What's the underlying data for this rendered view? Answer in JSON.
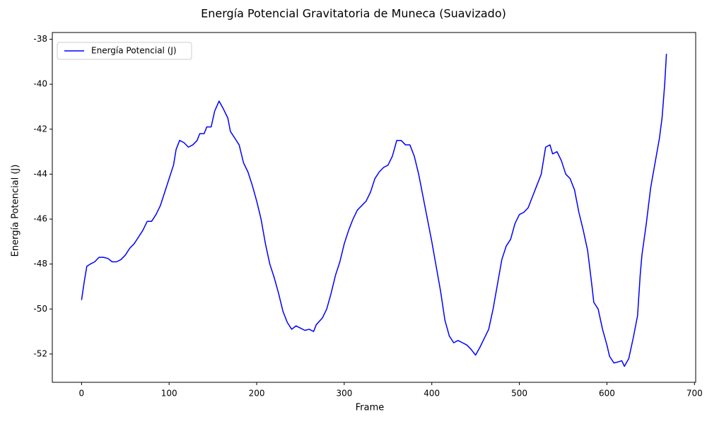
{
  "chart_data": {
    "type": "line",
    "title": "Energía Potencial Gravitatoria de Muneca (Suavizado)",
    "x_label": "Frame",
    "y_label": "Energía Potencial (J)",
    "x": [
      0,
      3,
      6,
      10,
      15,
      20,
      25,
      30,
      35,
      40,
      45,
      50,
      55,
      60,
      65,
      70,
      75,
      80,
      85,
      90,
      95,
      100,
      105,
      108,
      112,
      117,
      122,
      127,
      132,
      135,
      140,
      143,
      148,
      152,
      157,
      162,
      167,
      170,
      175,
      180,
      185,
      190,
      195,
      200,
      205,
      210,
      215,
      220,
      225,
      230,
      235,
      240,
      245,
      250,
      255,
      260,
      265,
      268,
      275,
      280,
      285,
      290,
      295,
      300,
      305,
      310,
      315,
      320,
      325,
      330,
      335,
      340,
      345,
      350,
      355,
      360,
      365,
      370,
      375,
      380,
      385,
      390,
      395,
      400,
      405,
      410,
      415,
      420,
      425,
      430,
      435,
      440,
      445,
      450,
      455,
      460,
      465,
      470,
      475,
      480,
      485,
      490,
      495,
      500,
      505,
      510,
      515,
      520,
      525,
      530,
      535,
      538,
      543,
      548,
      553,
      558,
      563,
      568,
      573,
      578,
      583,
      585,
      590,
      595,
      600,
      603,
      608,
      613,
      617,
      620,
      625,
      630,
      635,
      638,
      640,
      645,
      650,
      655,
      660,
      663,
      666,
      668
    ],
    "series": [
      {
        "name": "Energía Potencial (J)",
        "color": "#0000ff",
        "values": [
          -49.6,
          -48.8,
          -48.1,
          -48.0,
          -47.9,
          -47.7,
          -47.7,
          -47.75,
          -47.9,
          -47.9,
          -47.8,
          -47.6,
          -47.3,
          -47.1,
          -46.8,
          -46.5,
          -46.1,
          -46.1,
          -45.8,
          -45.4,
          -44.8,
          -44.2,
          -43.6,
          -42.9,
          -42.5,
          -42.6,
          -42.8,
          -42.7,
          -42.5,
          -42.2,
          -42.2,
          -41.9,
          -41.9,
          -41.2,
          -40.75,
          -41.1,
          -41.5,
          -42.1,
          -42.4,
          -42.7,
          -43.5,
          -43.9,
          -44.5,
          -45.2,
          -46.0,
          -47.1,
          -48.0,
          -48.6,
          -49.3,
          -50.1,
          -50.6,
          -50.9,
          -50.75,
          -50.85,
          -50.95,
          -50.9,
          -51.0,
          -50.7,
          -50.4,
          -50.0,
          -49.3,
          -48.5,
          -47.9,
          -47.1,
          -46.5,
          -46.0,
          -45.6,
          -45.4,
          -45.2,
          -44.8,
          -44.2,
          -43.9,
          -43.7,
          -43.6,
          -43.2,
          -42.5,
          -42.5,
          -42.7,
          -42.7,
          -43.2,
          -44.0,
          -45.0,
          -46.0,
          -47.0,
          -48.1,
          -49.2,
          -50.5,
          -51.2,
          -51.5,
          -51.4,
          -51.5,
          -51.6,
          -51.8,
          -52.05,
          -51.7,
          -51.3,
          -50.9,
          -50.0,
          -48.9,
          -47.8,
          -47.2,
          -46.9,
          -46.2,
          -45.8,
          -45.7,
          -45.5,
          -45.0,
          -44.5,
          -44.0,
          -42.8,
          -42.7,
          -43.1,
          -43.0,
          -43.4,
          -44.0,
          -44.2,
          -44.7,
          -45.7,
          -46.5,
          -47.4,
          -49.0,
          -49.7,
          -50.0,
          -50.9,
          -51.6,
          -52.1,
          -52.4,
          -52.35,
          -52.3,
          -52.55,
          -52.2,
          -51.3,
          -50.3,
          -48.5,
          -47.6,
          -46.2,
          -44.6,
          -43.5,
          -42.4,
          -41.5,
          -40.0,
          -38.65
        ]
      }
    ],
    "xlim": [
      -33.4,
      701.4
    ],
    "xticks": [
      0,
      100,
      200,
      300,
      400,
      500,
      600,
      700
    ],
    "ylim": [
      -53.26,
      -37.7
    ],
    "yticks": [
      -52,
      -50,
      -48,
      -46,
      -44,
      -42,
      -40,
      -38
    ],
    "legend": "upper left",
    "grid": false
  }
}
